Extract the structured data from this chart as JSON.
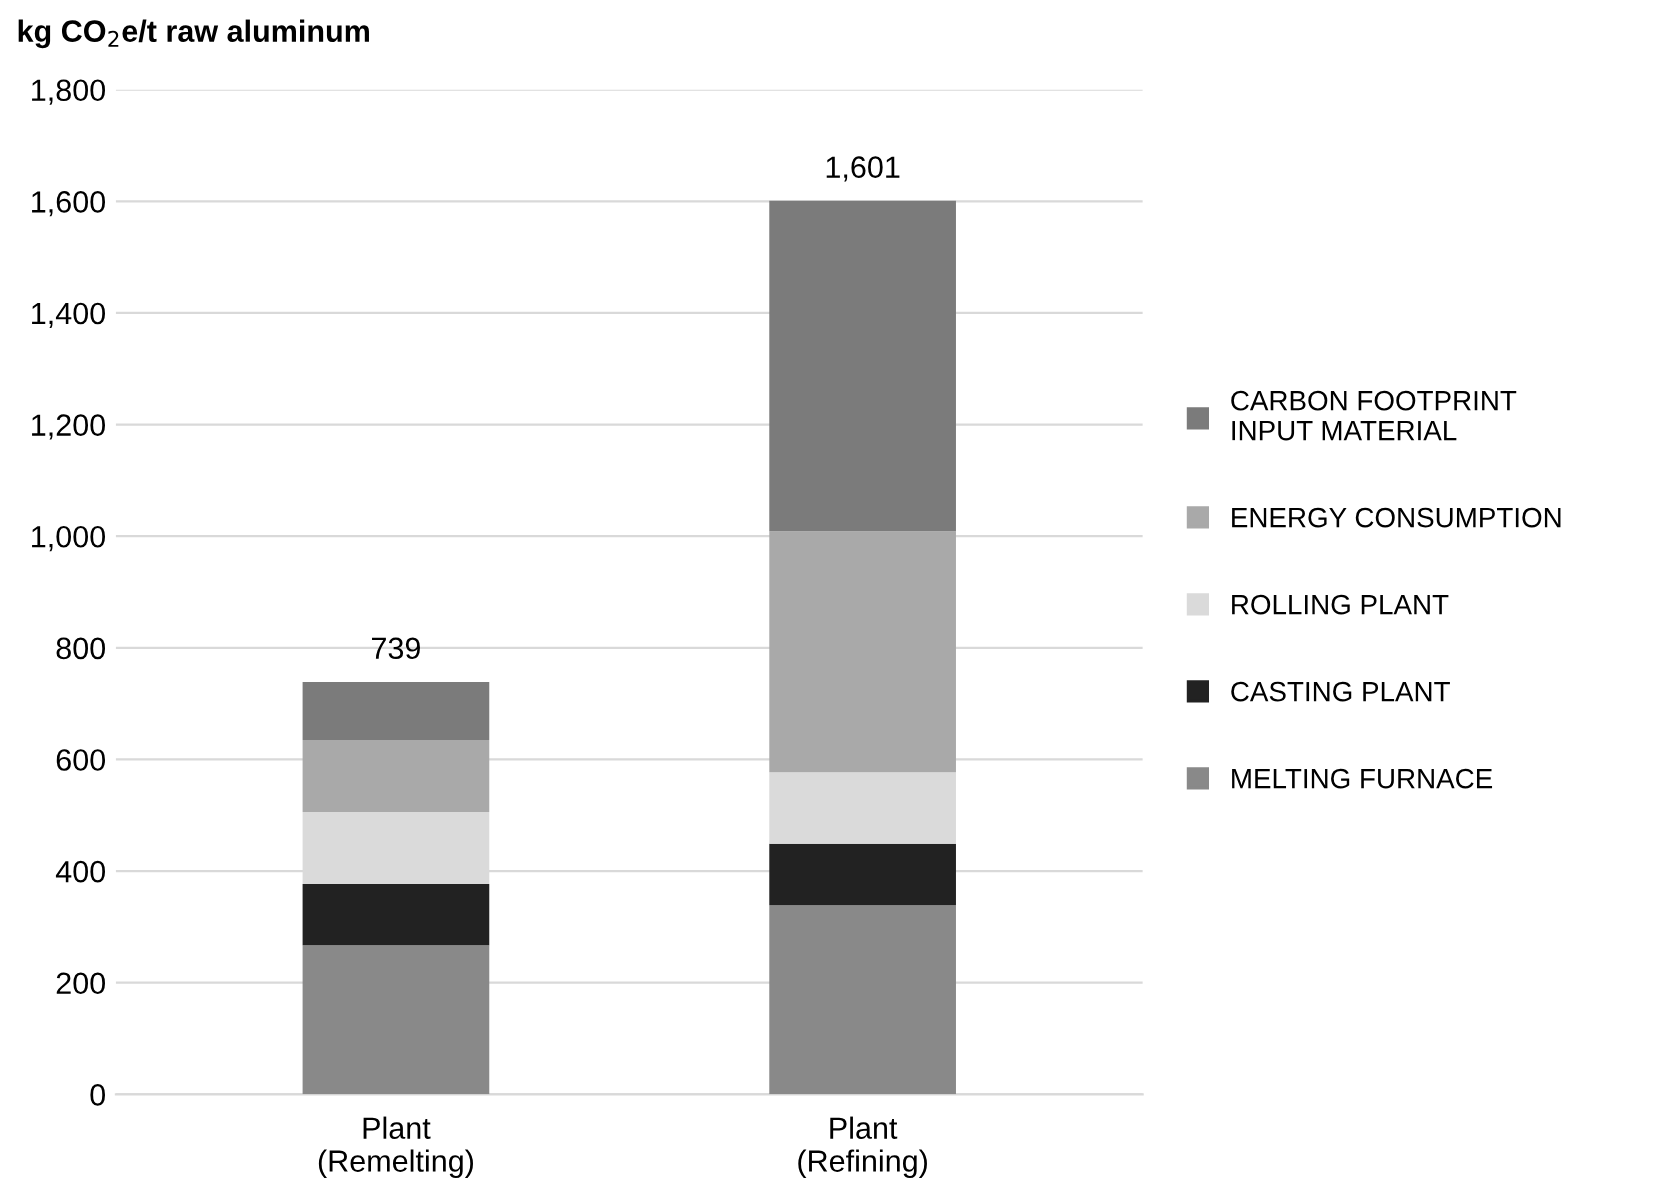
{
  "chart_data": {
    "type": "bar",
    "stacked": true,
    "ylabel": "kg CO$_{2}$e/t raw aluminum",
    "categories": [
      "Plant\n(Remelting)",
      "Plant\n(Refining)"
    ],
    "series": [
      {
        "name": "MELTING FURNACE",
        "color": "#898989",
        "values": [
          267,
          339
        ]
      },
      {
        "name": "CASTING PLANT",
        "color": "#222222",
        "values": [
          110,
          110
        ]
      },
      {
        "name": "ROLLING PLANT",
        "color": "#dadada",
        "values": [
          129,
          128
        ]
      },
      {
        "name": "ENERGY CONSUMPTION",
        "color": "#a9a9a9",
        "values": [
          129,
          432
        ]
      },
      {
        "name": "CARBON FOOTPRINT\nINPUT MATERIAL",
        "color": "#7b7b7b",
        "values": [
          104,
          592
        ]
      }
    ],
    "totals": [
      "739",
      "1,601"
    ],
    "ylim": [
      0,
      1800
    ],
    "yticks": [
      {
        "value": 0,
        "label": "0"
      },
      {
        "value": 200,
        "label": "200"
      },
      {
        "value": 400,
        "label": "400"
      },
      {
        "value": 600,
        "label": "600"
      },
      {
        "value": 800,
        "label": "800"
      },
      {
        "value": 1000,
        "label": "1,000"
      },
      {
        "value": 1200,
        "label": "1,200"
      },
      {
        "value": 1400,
        "label": "1,400"
      },
      {
        "value": 1600,
        "label": "1,600"
      },
      {
        "value": 1800,
        "label": "1,800"
      }
    ],
    "grid": "y",
    "legend": "right"
  }
}
